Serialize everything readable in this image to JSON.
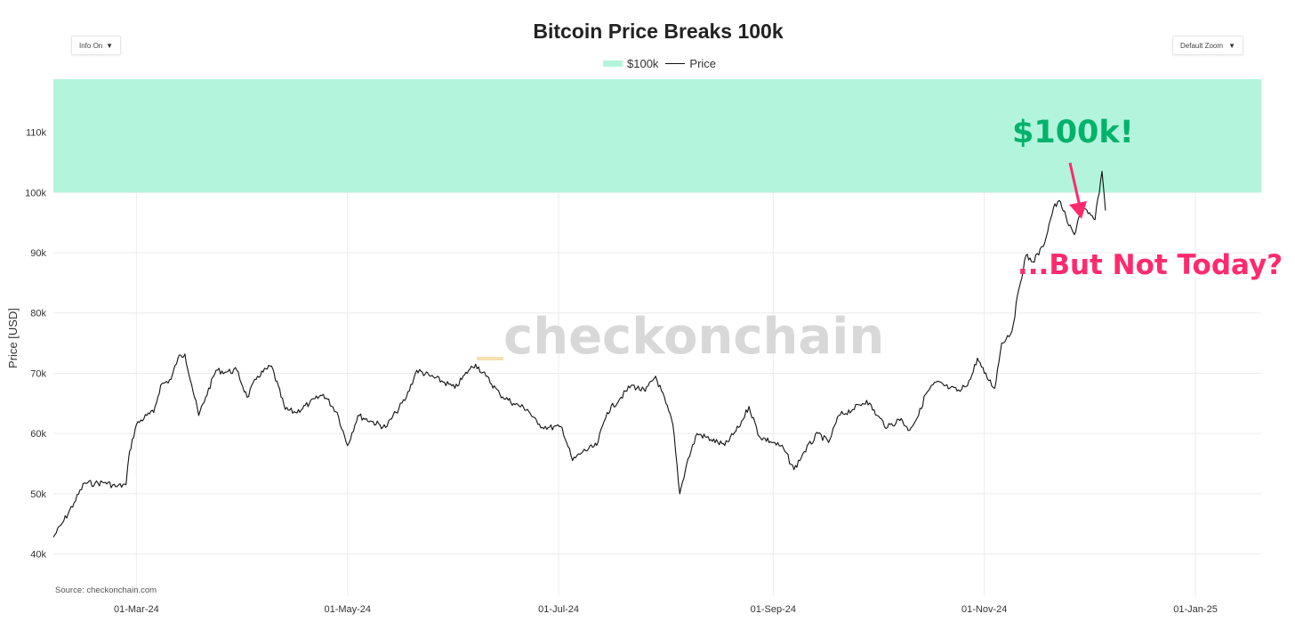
{
  "controls": {
    "info_label": "Info On",
    "zoom_label": "Default Zoom",
    "dropdown_arrow": "▼"
  },
  "source": "Source: checkonchain.com",
  "watermark": "checkonchain",
  "annotations": {
    "target_text": "$100k!",
    "target_color": "#00b26b",
    "question_text": "...But Not Today?",
    "question_color": "#ff2a6d"
  },
  "chart_data": {
    "type": "line",
    "title": "Bitcoin Price Breaks 100k",
    "xlabel": "",
    "ylabel": "Price [USD]",
    "grid": true,
    "legend_position": "top-center",
    "x_range": [
      "2024-02-06",
      "2025-01-20"
    ],
    "ylim": [
      33000,
      118800
    ],
    "y_ticks": [
      40000,
      50000,
      60000,
      70000,
      80000,
      90000,
      100000,
      110000
    ],
    "y_tick_labels": [
      "40k",
      "50k",
      "60k",
      "70k",
      "80k",
      "90k",
      "100k",
      "110k"
    ],
    "x_ticks": [
      "2024-03-01",
      "2024-05-01",
      "2024-07-01",
      "2024-09-01",
      "2024-11-01",
      "2025-01-01"
    ],
    "x_tick_labels": [
      "01-Mar-24",
      "01-May-24",
      "01-Jul-24",
      "01-Sep-24",
      "01-Nov-24",
      "01-Jan-25"
    ],
    "series": [
      {
        "name": "$100k",
        "kind": "band",
        "y_from": 100000,
        "y_to": 118800,
        "color": "#b3f5dc"
      },
      {
        "name": "Price",
        "kind": "line",
        "color": "#111111",
        "points": [
          [
            "2024-02-06",
            42800
          ],
          [
            "2024-02-09",
            45500
          ],
          [
            "2024-02-12",
            48500
          ],
          [
            "2024-02-15",
            51800
          ],
          [
            "2024-02-18",
            51700
          ],
          [
            "2024-02-21",
            51900
          ],
          [
            "2024-02-24",
            51200
          ],
          [
            "2024-02-27",
            51500
          ],
          [
            "2024-02-28",
            57000
          ],
          [
            "2024-03-01",
            61500
          ],
          [
            "2024-03-04",
            63000
          ],
          [
            "2024-03-06",
            63500
          ],
          [
            "2024-03-08",
            68000
          ],
          [
            "2024-03-11",
            69000
          ],
          [
            "2024-03-13",
            72500
          ],
          [
            "2024-03-15",
            73200
          ],
          [
            "2024-03-17",
            68000
          ],
          [
            "2024-03-19",
            63000
          ],
          [
            "2024-03-21",
            66000
          ],
          [
            "2024-03-24",
            70500
          ],
          [
            "2024-03-27",
            70200
          ],
          [
            "2024-03-30",
            70500
          ],
          [
            "2024-04-02",
            66000
          ],
          [
            "2024-04-05",
            69500
          ],
          [
            "2024-04-09",
            71200
          ],
          [
            "2024-04-13",
            64000
          ],
          [
            "2024-04-16",
            63500
          ],
          [
            "2024-04-20",
            65000
          ],
          [
            "2024-04-24",
            66500
          ],
          [
            "2024-04-28",
            63500
          ],
          [
            "2024-05-01",
            58000
          ],
          [
            "2024-05-04",
            63000
          ],
          [
            "2024-05-08",
            62000
          ],
          [
            "2024-05-12",
            61000
          ],
          [
            "2024-05-15",
            63500
          ],
          [
            "2024-05-18",
            66000
          ],
          [
            "2024-05-21",
            70500
          ],
          [
            "2024-05-25",
            69500
          ],
          [
            "2024-05-29",
            68500
          ],
          [
            "2024-06-01",
            67500
          ],
          [
            "2024-06-05",
            70500
          ],
          [
            "2024-06-07",
            71500
          ],
          [
            "2024-06-10",
            69500
          ],
          [
            "2024-06-14",
            66500
          ],
          [
            "2024-06-18",
            65000
          ],
          [
            "2024-06-22",
            64000
          ],
          [
            "2024-06-25",
            61500
          ],
          [
            "2024-06-28",
            61000
          ],
          [
            "2024-07-02",
            61000
          ],
          [
            "2024-07-05",
            55500
          ],
          [
            "2024-07-08",
            57000
          ],
          [
            "2024-07-12",
            58000
          ],
          [
            "2024-07-15",
            63500
          ],
          [
            "2024-07-19",
            66000
          ],
          [
            "2024-07-22",
            68000
          ],
          [
            "2024-07-26",
            67000
          ],
          [
            "2024-07-29",
            69500
          ],
          [
            "2024-08-01",
            65000
          ],
          [
            "2024-08-03",
            61500
          ],
          [
            "2024-08-05",
            50000
          ],
          [
            "2024-08-07",
            55000
          ],
          [
            "2024-08-10",
            60000
          ],
          [
            "2024-08-14",
            59000
          ],
          [
            "2024-08-18",
            58000
          ],
          [
            "2024-08-22",
            61000
          ],
          [
            "2024-08-25",
            64500
          ],
          [
            "2024-08-28",
            59500
          ],
          [
            "2024-09-01",
            58500
          ],
          [
            "2024-09-04",
            57500
          ],
          [
            "2024-09-07",
            54000
          ],
          [
            "2024-09-10",
            57000
          ],
          [
            "2024-09-14",
            60000
          ],
          [
            "2024-09-17",
            58500
          ],
          [
            "2024-09-20",
            63000
          ],
          [
            "2024-09-24",
            64000
          ],
          [
            "2024-09-28",
            65500
          ],
          [
            "2024-10-01",
            63000
          ],
          [
            "2024-10-04",
            61000
          ],
          [
            "2024-10-08",
            62500
          ],
          [
            "2024-10-10",
            60500
          ],
          [
            "2024-10-13",
            63000
          ],
          [
            "2024-10-15",
            66500
          ],
          [
            "2024-10-18",
            68500
          ],
          [
            "2024-10-22",
            67500
          ],
          [
            "2024-10-25",
            67000
          ],
          [
            "2024-10-28",
            69000
          ],
          [
            "2024-10-30",
            72500
          ],
          [
            "2024-11-01",
            70000
          ],
          [
            "2024-11-04",
            67500
          ],
          [
            "2024-11-06",
            75000
          ],
          [
            "2024-11-09",
            77000
          ],
          [
            "2024-11-11",
            84000
          ],
          [
            "2024-11-13",
            89500
          ],
          [
            "2024-11-15",
            88500
          ],
          [
            "2024-11-18",
            91000
          ],
          [
            "2024-11-21",
            97500
          ],
          [
            "2024-11-23",
            98500
          ],
          [
            "2024-11-25",
            95000
          ],
          [
            "2024-11-27",
            93000
          ],
          [
            "2024-11-29",
            97500
          ],
          [
            "2024-12-01",
            96500
          ],
          [
            "2024-12-03",
            95500
          ],
          [
            "2024-12-05",
            103500
          ],
          [
            "2024-12-06",
            97000
          ]
        ]
      }
    ]
  }
}
